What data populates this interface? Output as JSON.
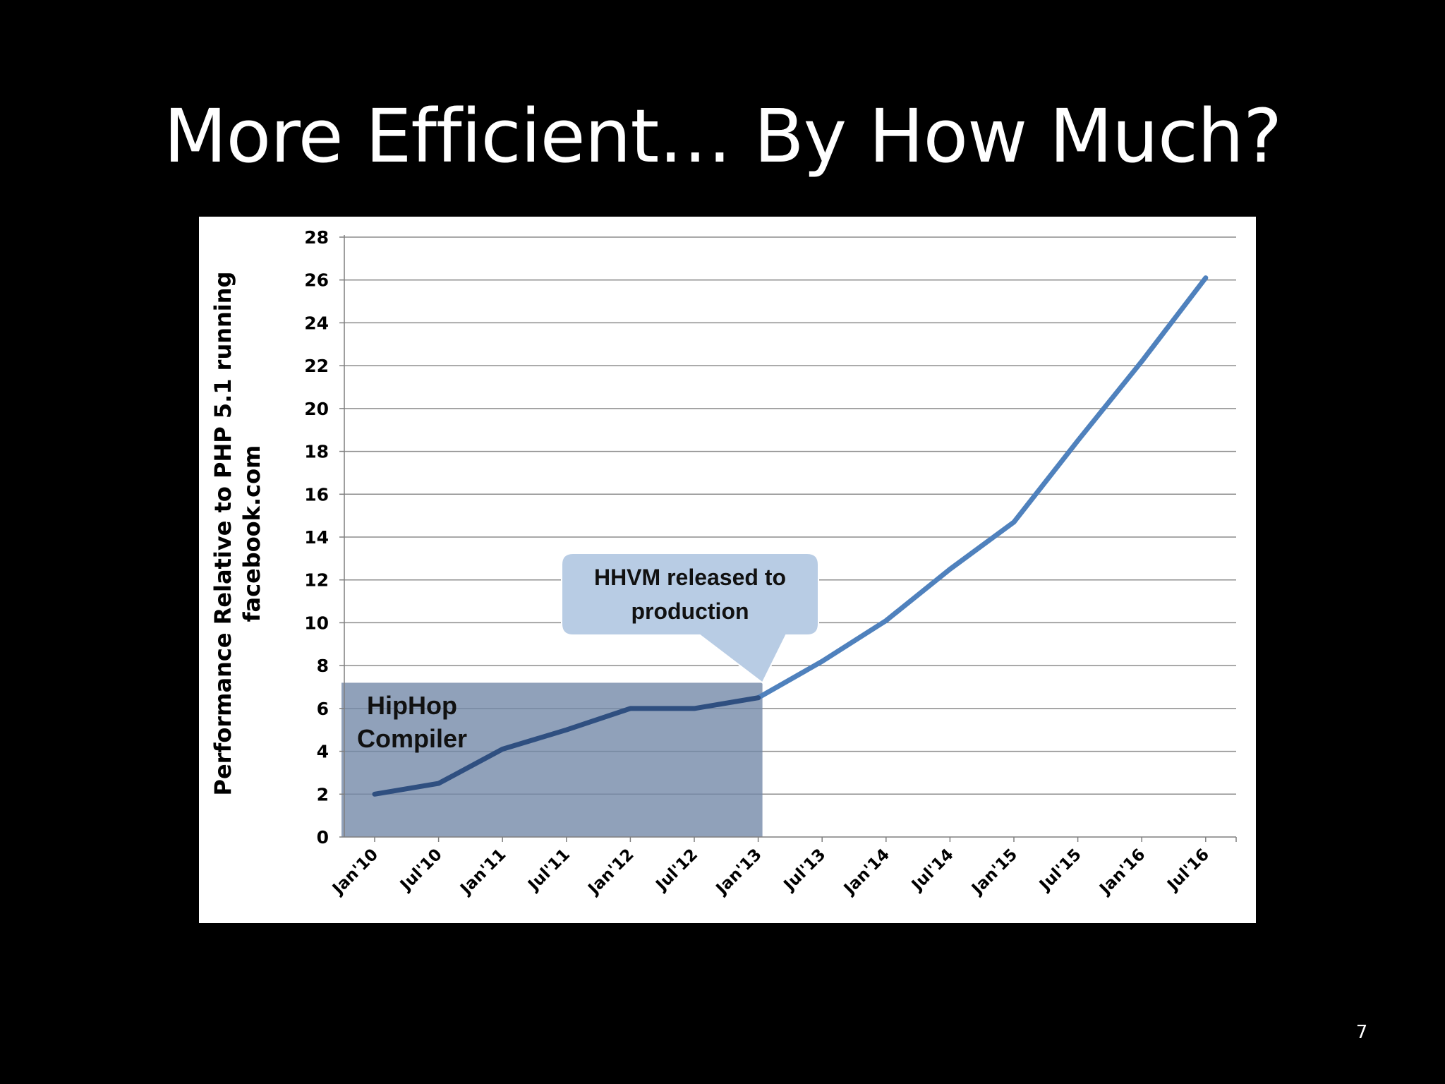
{
  "slide": {
    "title": "More Efficient… By How Much?",
    "page_number": "7"
  },
  "chart_data": {
    "type": "line",
    "title": "",
    "xlabel": "",
    "ylabel": "Performance Relative to PHP 5.1 running facebook.com",
    "ylabel_lines": [
      "Performance Relative to PHP 5.1 running",
      "facebook.com"
    ],
    "ylim": [
      0,
      28
    ],
    "yticks": [
      0,
      2,
      4,
      6,
      8,
      10,
      12,
      14,
      16,
      18,
      20,
      22,
      24,
      26,
      28
    ],
    "grid": true,
    "categories": [
      "Jan'10",
      "Jul'10",
      "Jan'11",
      "Jul'11",
      "Jan'12",
      "Jul'12",
      "Jan'13",
      "Jul'13",
      "Jan'14",
      "Jul'14",
      "Jan'15",
      "Jul'15",
      "Jan'16",
      "Jul'16"
    ],
    "series": [
      {
        "values": [
          2.0,
          2.5,
          4.1,
          5.0,
          6.0,
          6.0,
          6.5,
          8.2,
          10.1,
          12.5,
          14.7,
          18.5,
          22.2,
          26.1
        ],
        "color": "#4f81bd"
      }
    ],
    "annotations": {
      "hiphop_region": {
        "label_lines": [
          "HipHop",
          "Compiler"
        ],
        "x_range": [
          "Jan'10",
          "Jan'13"
        ],
        "y_top": 7.2,
        "color": "#7186a6"
      },
      "hhvm_callout": {
        "label_lines": [
          "HHVM released to",
          "production"
        ],
        "points_to": "Jan'13",
        "color": "#b8cce4"
      }
    }
  }
}
